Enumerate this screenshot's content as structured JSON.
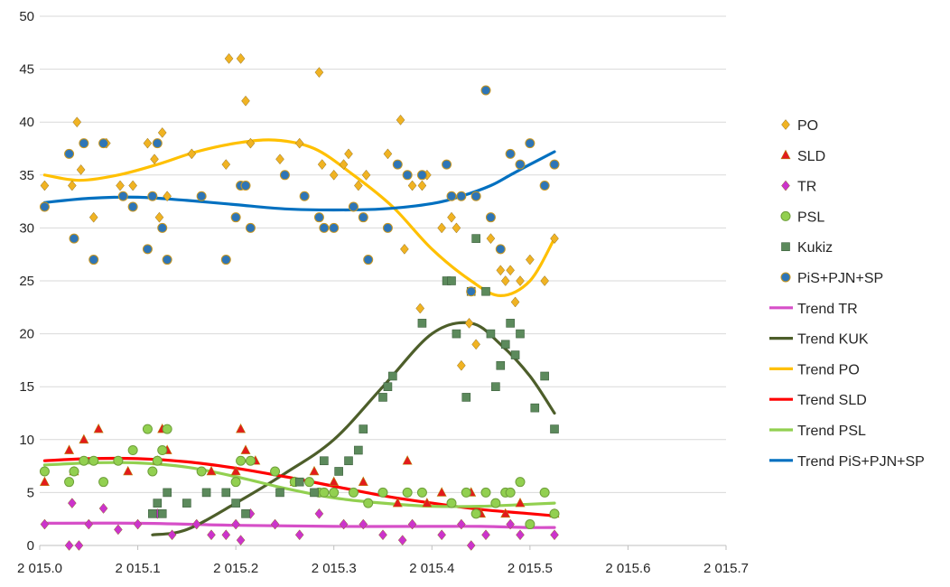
{
  "chart_data": {
    "type": "scatter",
    "xlim": [
      2015.0,
      2015.7
    ],
    "ylim": [
      0,
      50
    ],
    "x_ticks": [
      2015.0,
      2015.1,
      2015.2,
      2015.3,
      2015.4,
      2015.5,
      2015.6,
      2015.7
    ],
    "x_tick_labels": [
      "2 015.0",
      "2 015.1",
      "2 015.2",
      "2 015.3",
      "2 015.4",
      "2 015.5",
      "2 015.6",
      "2 015.7"
    ],
    "y_ticks": [
      0,
      5,
      10,
      15,
      20,
      25,
      30,
      35,
      40,
      45,
      50
    ],
    "y_tick_labels": [
      "0",
      "5",
      "10",
      "15",
      "20",
      "25",
      "30",
      "35",
      "40",
      "45",
      "50"
    ],
    "grid": "horizontal",
    "legend_position": "right",
    "series": [
      {
        "name": "PO",
        "marker": "diamond",
        "color": "#F0B323",
        "x": [
          2015.005,
          2015.033,
          2015.038,
          2015.042,
          2015.055,
          2015.068,
          2015.082,
          2015.095,
          2015.11,
          2015.117,
          2015.122,
          2015.125,
          2015.13,
          2015.155,
          2015.19,
          2015.193,
          2015.205,
          2015.21,
          2015.215,
          2015.245,
          2015.265,
          2015.285,
          2015.288,
          2015.3,
          2015.31,
          2015.315,
          2015.325,
          2015.333,
          2015.355,
          2015.368,
          2015.372,
          2015.38,
          2015.388,
          2015.39,
          2015.395,
          2015.41,
          2015.42,
          2015.425,
          2015.43,
          2015.438,
          2015.445,
          2015.46,
          2015.47,
          2015.475,
          2015.48,
          2015.485,
          2015.49,
          2015.5,
          2015.515,
          2015.525
        ],
        "y": [
          34,
          34,
          40,
          35.5,
          31,
          38,
          34,
          34,
          38,
          36.5,
          31,
          39,
          33,
          37,
          36,
          46,
          46,
          42,
          38,
          36.5,
          38,
          44.7,
          36,
          35,
          36,
          37,
          34,
          35,
          37,
          40.2,
          28,
          34,
          22.4,
          34,
          35,
          30,
          31,
          30,
          17,
          21,
          19,
          29,
          26,
          25,
          26,
          23,
          25,
          27,
          25,
          29
        ]
      },
      {
        "name": "SLD",
        "marker": "triangle",
        "color": "#E31A1C",
        "x": [
          2015.005,
          2015.03,
          2015.035,
          2015.045,
          2015.06,
          2015.09,
          2015.12,
          2015.125,
          2015.13,
          2015.175,
          2015.2,
          2015.205,
          2015.21,
          2015.22,
          2015.26,
          2015.28,
          2015.3,
          2015.33,
          2015.365,
          2015.375,
          2015.395,
          2015.41,
          2015.44,
          2015.45,
          2015.475,
          2015.49,
          2015.525
        ],
        "y": [
          6,
          9,
          7,
          10,
          11,
          7,
          8,
          11,
          9,
          7,
          7,
          11,
          9,
          8,
          6,
          7,
          6,
          6,
          4,
          8,
          4,
          5,
          5,
          3,
          3,
          4,
          3
        ]
      },
      {
        "name": "TR",
        "marker": "diamond",
        "color": "#CC33CC",
        "x": [
          2015.005,
          2015.03,
          2015.033,
          2015.04,
          2015.05,
          2015.065,
          2015.08,
          2015.1,
          2015.12,
          2015.135,
          2015.16,
          2015.175,
          2015.19,
          2015.2,
          2015.205,
          2015.215,
          2015.24,
          2015.265,
          2015.285,
          2015.31,
          2015.33,
          2015.35,
          2015.37,
          2015.38,
          2015.41,
          2015.43,
          2015.44,
          2015.455,
          2015.48,
          2015.49,
          2015.525
        ],
        "y": [
          2,
          0,
          4,
          0,
          2,
          3.5,
          1.5,
          2,
          3,
          1,
          2,
          1,
          1,
          2,
          0.5,
          3,
          2,
          1,
          3,
          2,
          2,
          1,
          0.5,
          2,
          1,
          2,
          0,
          1,
          2,
          1,
          1
        ]
      },
      {
        "name": "PSL",
        "marker": "circle",
        "color": "#92D050",
        "x": [
          2015.005,
          2015.03,
          2015.035,
          2015.045,
          2015.055,
          2015.065,
          2015.08,
          2015.095,
          2015.11,
          2015.115,
          2015.12,
          2015.125,
          2015.13,
          2015.165,
          2015.2,
          2015.205,
          2015.215,
          2015.24,
          2015.26,
          2015.275,
          2015.285,
          2015.29,
          2015.3,
          2015.32,
          2015.335,
          2015.35,
          2015.375,
          2015.39,
          2015.42,
          2015.435,
          2015.445,
          2015.455,
          2015.465,
          2015.475,
          2015.48,
          2015.49,
          2015.5,
          2015.515,
          2015.525
        ],
        "y": [
          7,
          6,
          7,
          8,
          8,
          6,
          8,
          9,
          11,
          7,
          8,
          9,
          11,
          7,
          6,
          8,
          8,
          7,
          6,
          6,
          5,
          5,
          5,
          5,
          4,
          5,
          5,
          5,
          4,
          5,
          3,
          5,
          4,
          5,
          5,
          6,
          2,
          5,
          3
        ]
      },
      {
        "name": "Kukiz",
        "marker": "square",
        "color": "#5C8A5C",
        "x": [
          2015.115,
          2015.12,
          2015.125,
          2015.13,
          2015.15,
          2015.17,
          2015.19,
          2015.2,
          2015.21,
          2015.245,
          2015.265,
          2015.28,
          2015.29,
          2015.305,
          2015.315,
          2015.325,
          2015.33,
          2015.35,
          2015.355,
          2015.36,
          2015.39,
          2015.415,
          2015.42,
          2015.425,
          2015.435,
          2015.44,
          2015.445,
          2015.455,
          2015.46,
          2015.465,
          2015.47,
          2015.475,
          2015.48,
          2015.485,
          2015.49,
          2015.505,
          2015.515,
          2015.525
        ],
        "y": [
          3,
          4,
          3,
          5,
          4,
          5,
          5,
          4,
          3,
          5,
          6,
          5,
          8,
          7,
          8,
          9,
          11,
          14,
          15,
          16,
          21,
          25,
          25,
          20,
          14,
          24,
          29,
          24,
          20,
          15,
          17,
          19,
          21,
          18,
          20,
          13,
          16,
          11
        ]
      },
      {
        "name": "PiS+PJN+SP",
        "marker": "circle",
        "color": "#2E75B6",
        "x": [
          2015.005,
          2015.03,
          2015.035,
          2015.045,
          2015.055,
          2015.065,
          2015.085,
          2015.095,
          2015.11,
          2015.115,
          2015.12,
          2015.125,
          2015.13,
          2015.165,
          2015.19,
          2015.2,
          2015.205,
          2015.21,
          2015.215,
          2015.25,
          2015.27,
          2015.285,
          2015.29,
          2015.3,
          2015.32,
          2015.33,
          2015.335,
          2015.355,
          2015.365,
          2015.375,
          2015.39,
          2015.415,
          2015.42,
          2015.43,
          2015.44,
          2015.445,
          2015.455,
          2015.46,
          2015.47,
          2015.48,
          2015.49,
          2015.5,
          2015.515,
          2015.525
        ],
        "y": [
          32,
          37,
          29,
          38,
          27,
          38,
          33,
          32,
          28,
          33,
          38,
          30,
          27,
          33,
          27,
          31,
          34,
          34,
          30,
          35,
          33,
          31,
          30,
          30,
          32,
          31,
          27,
          30,
          36,
          35,
          35,
          36,
          33,
          33,
          24,
          33,
          43,
          31,
          28,
          37,
          36,
          38,
          34,
          36
        ]
      }
    ],
    "trend_lines": [
      {
        "name": "Trend TR",
        "color": "#D64FC8",
        "x": [
          2015.005,
          2015.1,
          2015.2,
          2015.3,
          2015.4,
          2015.45,
          2015.5,
          2015.525
        ],
        "y": [
          2.1,
          2.1,
          1.9,
          1.8,
          1.8,
          1.8,
          1.7,
          1.7
        ]
      },
      {
        "name": "Trend KUK",
        "color": "#4D5E2A",
        "x": [
          2015.115,
          2015.15,
          2015.2,
          2015.25,
          2015.3,
          2015.35,
          2015.4,
          2015.44,
          2015.47,
          2015.5,
          2015.525
        ],
        "y": [
          1,
          1.5,
          4,
          6.8,
          10,
          15,
          20,
          21,
          19,
          16,
          12.5
        ]
      },
      {
        "name": "Trend PO",
        "color": "#FFC000",
        "x": [
          2015.005,
          2015.04,
          2015.08,
          2015.12,
          2015.16,
          2015.2,
          2015.24,
          2015.28,
          2015.32,
          2015.36,
          2015.4,
          2015.44,
          2015.47,
          2015.5,
          2015.525
        ],
        "y": [
          35,
          34.5,
          35,
          36,
          37.2,
          38,
          38.3,
          37.5,
          35,
          32,
          28,
          25,
          23.6,
          25,
          29
        ]
      },
      {
        "name": "Trend SLD",
        "color": "#FF0000",
        "x": [
          2015.005,
          2015.05,
          2015.1,
          2015.15,
          2015.2,
          2015.25,
          2015.3,
          2015.35,
          2015.4,
          2015.45,
          2015.5,
          2015.525
        ],
        "y": [
          8,
          8.2,
          8.2,
          7.9,
          7.3,
          6.5,
          5.6,
          4.7,
          4,
          3.4,
          3,
          2.8
        ]
      },
      {
        "name": "Trend PSL",
        "color": "#92D050",
        "x": [
          2015.005,
          2015.05,
          2015.1,
          2015.15,
          2015.2,
          2015.25,
          2015.3,
          2015.35,
          2015.4,
          2015.45,
          2015.5,
          2015.525
        ],
        "y": [
          7.6,
          7.8,
          7.8,
          7.4,
          6.5,
          5.4,
          4.5,
          4,
          3.7,
          3.7,
          3.9,
          4
        ]
      },
      {
        "name": "Trend PiS+PJN+SP",
        "color": "#0070C0",
        "x": [
          2015.005,
          2015.05,
          2015.1,
          2015.15,
          2015.2,
          2015.25,
          2015.3,
          2015.35,
          2015.4,
          2015.43,
          2015.46,
          2015.48,
          2015.5,
          2015.525
        ],
        "y": [
          32.4,
          32.8,
          32.9,
          32.6,
          32.2,
          31.8,
          31.7,
          31.8,
          32.3,
          33,
          34,
          35,
          36,
          37.2
        ]
      }
    ]
  }
}
